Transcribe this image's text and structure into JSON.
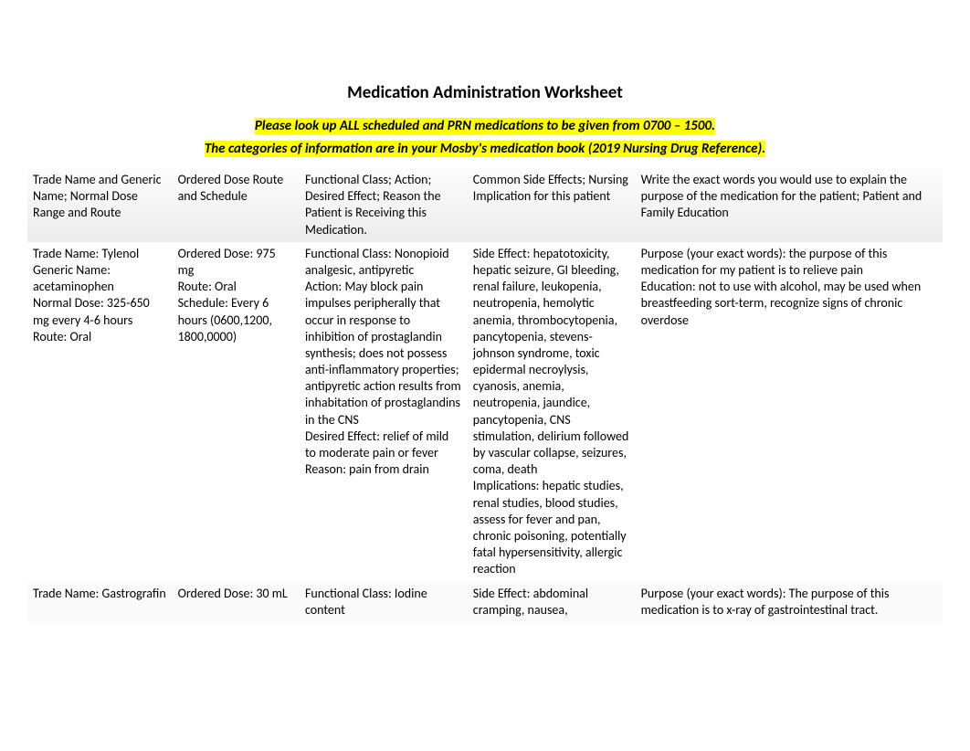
{
  "title": "Medication Administration Worksheet",
  "instruction_line1": "Please look up ALL scheduled and PRN medications to be given from 0700 – 1500.",
  "instruction_line2": "The categories of information are in your Mosby's medication book (2019 Nursing Drug Reference).",
  "columns": {
    "c1": "Trade Name and Generic Name; Normal Dose Range and Route",
    "c2": "Ordered Dose Route and Schedule",
    "c3": "Functional Class; Action; Desired Effect; Reason the Patient is Receiving this Medication.",
    "c4": "Common Side Effects; Nursing Implication for this patient",
    "c5": "Write the exact words you would use to explain the purpose of the medication for the patient; Patient and Family Education"
  },
  "rows": [
    {
      "c1": {
        "l1": "Trade Name: Tylenol",
        "l2": "Generic Name: acetaminophen",
        "l3": "Normal Dose: 325-650 mg every 4-6 hours",
        "l4": "Route: Oral"
      },
      "c2": {
        "l1": "Ordered Dose:  975 mg",
        "l2": "Route: Oral",
        "l3": "Schedule: Every 6 hours (0600,1200, 1800,0000)"
      },
      "c3": {
        "l1": "Functional Class: Nonopioid analgesic, antipyretic",
        "l2": "Action: May block pain impulses peripherally that occur in response to inhibition of prostaglandin synthesis; does not possess anti-inflammatory properties; antipyretic action results from inhabitation of prostaglandins in the CNS",
        "l3": "Desired Effect:  relief of mild to moderate pain or fever",
        "l4": "Reason: pain from drain"
      },
      "c4": {
        "l1": "Side Effect: hepatotoxicity, hepatic seizure, GI bleeding, renal failure, leukopenia, neutropenia, hemolytic anemia, thrombocytopenia, pancytopenia, stevens-johnson syndrome, toxic epidermal necroylysis, cyanosis, anemia, neutropenia, jaundice, pancytopenia, CNS stimulation, delirium followed by vascular collapse, seizures, coma, death",
        "l2": "Implications:  hepatic studies, renal studies, blood studies, assess for fever and pan, chronic poisoning, potentially fatal hypersensitivity, allergic reaction"
      },
      "c5": {
        "l1": "Purpose (your exact words):  the purpose of this medication for my patient is to relieve pain",
        "l2": "Education:   not to use with alcohol, may be used when breastfeeding sort-term, recognize signs of chronic overdose"
      }
    },
    {
      "c1": {
        "l1": "Trade Name: Gastrografin"
      },
      "c2": {
        "l1": "Ordered Dose:  30 mL"
      },
      "c3": {
        "l1": "Functional Class: Iodine content"
      },
      "c4": {
        "l1": "Side Effect:  abdominal cramping, nausea,"
      },
      "c5": {
        "l1": "Purpose (your exact words): The purpose of this medication is to x-ray of gastrointestinal tract."
      }
    }
  ],
  "styling": {
    "highlight_bg": "#ffff00",
    "page_bg": "#ffffff",
    "header_gradient_from": "#fdfdfd",
    "header_gradient_to": "#ececec",
    "font_family": "Calibri, Arial, sans-serif",
    "title_fontsize": 19,
    "instruction_fontsize": 15,
    "body_fontsize": 14
  }
}
